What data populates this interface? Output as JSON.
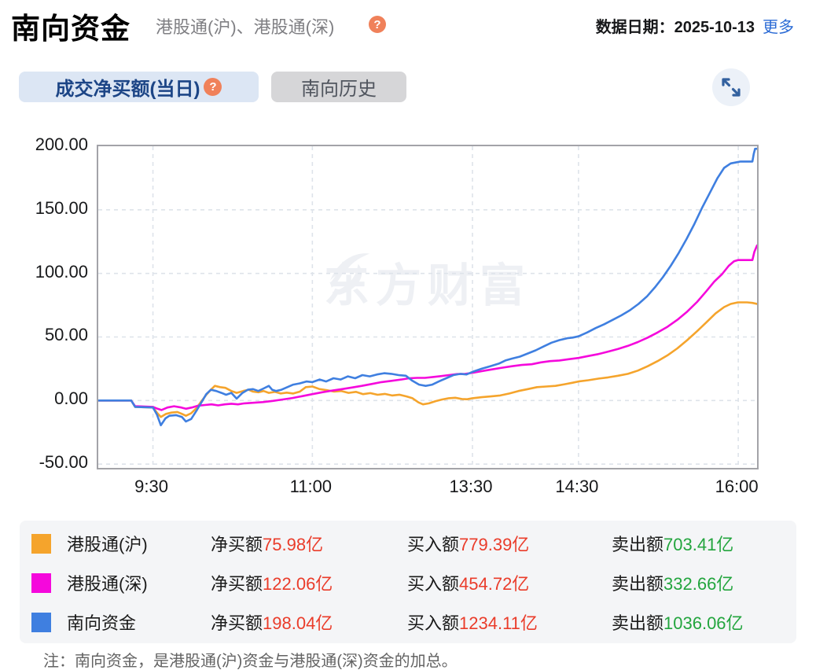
{
  "header": {
    "title": "南向资金",
    "subtitle": "港股通(沪)、港股通(深)",
    "help_glyph": "?",
    "date_text": "数据日期：2025-10-13",
    "more_label": "更多"
  },
  "tabs": [
    {
      "label": "成交净买额(当日)",
      "active": true
    },
    {
      "label": "南向历史",
      "active": false
    }
  ],
  "watermark": "东方财富",
  "chart_data": {
    "type": "line",
    "title": "成交净买额(当日)",
    "ylabel": "亿",
    "ylim": [
      -53,
      200
    ],
    "grid": true,
    "legend_position": "bottom",
    "y_ticks": [
      {
        "v": 200,
        "label": "200.00"
      },
      {
        "v": 150,
        "label": "150.00"
      },
      {
        "v": 100,
        "label": "100.00"
      },
      {
        "v": 50,
        "label": "50.00"
      },
      {
        "v": 0,
        "label": "0.00"
      },
      {
        "v": -50,
        "label": "-50.00"
      }
    ],
    "x_ticks": [
      {
        "f": 0.083,
        "label": "9:30"
      },
      {
        "f": 0.325,
        "label": "11:00"
      },
      {
        "f": 0.568,
        "label": "13:30"
      },
      {
        "f": 0.729,
        "label": "14:30"
      },
      {
        "f": 0.9715,
        "label": "16:00"
      }
    ],
    "series": [
      {
        "name": "港股通(沪)",
        "color": "#f5a42c",
        "points": [
          [
            0,
            0
          ],
          [
            0.05,
            0
          ],
          [
            0.056,
            -5
          ],
          [
            0.083,
            -5.5
          ],
          [
            0.089,
            -9.5
          ],
          [
            0.095,
            -13
          ],
          [
            0.103,
            -10.5
          ],
          [
            0.111,
            -9.5
          ],
          [
            0.12,
            -9
          ],
          [
            0.127,
            -10.5
          ],
          [
            0.133,
            -12
          ],
          [
            0.141,
            -10
          ],
          [
            0.149,
            -6
          ],
          [
            0.156,
            -1
          ],
          [
            0.164,
            4.5
          ],
          [
            0.171,
            8.5
          ],
          [
            0.177,
            11.5
          ],
          [
            0.185,
            10.5
          ],
          [
            0.193,
            10
          ],
          [
            0.202,
            7.5
          ],
          [
            0.21,
            6
          ],
          [
            0.22,
            7.5
          ],
          [
            0.228,
            8.5
          ],
          [
            0.235,
            7
          ],
          [
            0.243,
            6.5
          ],
          [
            0.251,
            7.5
          ],
          [
            0.259,
            6
          ],
          [
            0.268,
            6.8
          ],
          [
            0.277,
            5.5
          ],
          [
            0.286,
            6.2
          ],
          [
            0.296,
            5.5
          ],
          [
            0.306,
            7
          ],
          [
            0.315,
            10.5
          ],
          [
            0.325,
            11
          ],
          [
            0.336,
            9
          ],
          [
            0.347,
            8.2
          ],
          [
            0.358,
            7
          ],
          [
            0.369,
            7.5
          ],
          [
            0.38,
            6
          ],
          [
            0.391,
            6.8
          ],
          [
            0.402,
            5
          ],
          [
            0.413,
            5.8
          ],
          [
            0.424,
            4.5
          ],
          [
            0.435,
            5.2
          ],
          [
            0.446,
            4
          ],
          [
            0.457,
            4.6
          ],
          [
            0.468,
            3.2
          ],
          [
            0.477,
            1.8
          ],
          [
            0.486,
            -1.5
          ],
          [
            0.493,
            -3
          ],
          [
            0.502,
            -2.2
          ],
          [
            0.512,
            -0.5
          ],
          [
            0.522,
            0.8
          ],
          [
            0.532,
            1.8
          ],
          [
            0.542,
            2.2
          ],
          [
            0.552,
            1.2
          ],
          [
            0.56,
            1
          ],
          [
            0.568,
            1.8
          ],
          [
            0.582,
            2.6
          ],
          [
            0.596,
            3.2
          ],
          [
            0.61,
            4
          ],
          [
            0.624,
            5.5
          ],
          [
            0.638,
            7.5
          ],
          [
            0.652,
            9
          ],
          [
            0.666,
            10.5
          ],
          [
            0.68,
            11
          ],
          [
            0.694,
            11.5
          ],
          [
            0.708,
            12.8
          ],
          [
            0.72,
            14
          ],
          [
            0.729,
            15
          ],
          [
            0.744,
            16
          ],
          [
            0.759,
            17.2
          ],
          [
            0.774,
            18.2
          ],
          [
            0.789,
            19.5
          ],
          [
            0.804,
            21
          ],
          [
            0.819,
            23.5
          ],
          [
            0.834,
            27
          ],
          [
            0.849,
            31
          ],
          [
            0.864,
            35.5
          ],
          [
            0.879,
            41
          ],
          [
            0.894,
            47.5
          ],
          [
            0.909,
            54.5
          ],
          [
            0.923,
            61.5
          ],
          [
            0.937,
            68.5
          ],
          [
            0.95,
            73.5
          ],
          [
            0.96,
            76
          ],
          [
            0.971,
            77.2
          ],
          [
            0.985,
            77.2
          ],
          [
            0.993,
            76.8
          ],
          [
            1,
            76
          ]
        ]
      },
      {
        "name": "港股通(深)",
        "color": "#f508dc",
        "points": [
          [
            0,
            0
          ],
          [
            0.05,
            0
          ],
          [
            0.056,
            -4.5
          ],
          [
            0.083,
            -5
          ],
          [
            0.09,
            -6.5
          ],
          [
            0.096,
            -7.5
          ],
          [
            0.105,
            -5.5
          ],
          [
            0.115,
            -4.5
          ],
          [
            0.126,
            -5.5
          ],
          [
            0.133,
            -6.5
          ],
          [
            0.142,
            -5.5
          ],
          [
            0.152,
            -4
          ],
          [
            0.162,
            -3.5
          ],
          [
            0.172,
            -3
          ],
          [
            0.182,
            -3.8
          ],
          [
            0.192,
            -3
          ],
          [
            0.202,
            -2.5
          ],
          [
            0.212,
            -3
          ],
          [
            0.222,
            -2.2
          ],
          [
            0.235,
            -1.8
          ],
          [
            0.25,
            -1.2
          ],
          [
            0.265,
            -0.3
          ],
          [
            0.28,
            0.8
          ],
          [
            0.295,
            2
          ],
          [
            0.31,
            3.5
          ],
          [
            0.325,
            5
          ],
          [
            0.34,
            6.5
          ],
          [
            0.355,
            7.8
          ],
          [
            0.37,
            9
          ],
          [
            0.385,
            10.2
          ],
          [
            0.4,
            11.5
          ],
          [
            0.415,
            13
          ],
          [
            0.43,
            14.5
          ],
          [
            0.445,
            15.5
          ],
          [
            0.46,
            16.5
          ],
          [
            0.472,
            17.5
          ],
          [
            0.484,
            17.8
          ],
          [
            0.496,
            17.8
          ],
          [
            0.508,
            18.5
          ],
          [
            0.52,
            19.2
          ],
          [
            0.532,
            20
          ],
          [
            0.545,
            20.8
          ],
          [
            0.557,
            21
          ],
          [
            0.568,
            21.8
          ],
          [
            0.583,
            23.2
          ],
          [
            0.598,
            24.5
          ],
          [
            0.613,
            25.8
          ],
          [
            0.628,
            27
          ],
          [
            0.643,
            28
          ],
          [
            0.658,
            28.5
          ],
          [
            0.672,
            30
          ],
          [
            0.686,
            31
          ],
          [
            0.7,
            31.5
          ],
          [
            0.714,
            32.5
          ],
          [
            0.729,
            33.5
          ],
          [
            0.744,
            35
          ],
          [
            0.759,
            36.5
          ],
          [
            0.774,
            38.5
          ],
          [
            0.789,
            40.5
          ],
          [
            0.804,
            43
          ],
          [
            0.819,
            46
          ],
          [
            0.834,
            49.5
          ],
          [
            0.849,
            53.5
          ],
          [
            0.864,
            58
          ],
          [
            0.879,
            63.5
          ],
          [
            0.894,
            70
          ],
          [
            0.909,
            77.5
          ],
          [
            0.923,
            86
          ],
          [
            0.935,
            93.5
          ],
          [
            0.947,
            99.5
          ],
          [
            0.957,
            106
          ],
          [
            0.965,
            109.5
          ],
          [
            0.971,
            110.5
          ],
          [
            0.993,
            110.5
          ],
          [
            0.996,
            117
          ],
          [
            1,
            122
          ]
        ]
      },
      {
        "name": "南向资金",
        "color": "#3f7fe0",
        "points": [
          [
            0,
            0
          ],
          [
            0.05,
            0
          ],
          [
            0.056,
            -5
          ],
          [
            0.083,
            -5.5
          ],
          [
            0.089,
            -11
          ],
          [
            0.095,
            -19.5
          ],
          [
            0.102,
            -14
          ],
          [
            0.108,
            -12
          ],
          [
            0.118,
            -11.5
          ],
          [
            0.127,
            -13
          ],
          [
            0.133,
            -16.5
          ],
          [
            0.141,
            -14.5
          ],
          [
            0.149,
            -8
          ],
          [
            0.156,
            -2
          ],
          [
            0.164,
            5
          ],
          [
            0.171,
            8.5
          ],
          [
            0.179,
            7.5
          ],
          [
            0.187,
            6
          ],
          [
            0.194,
            4.5
          ],
          [
            0.202,
            6
          ],
          [
            0.21,
            1.5
          ],
          [
            0.219,
            6
          ],
          [
            0.227,
            8.5
          ],
          [
            0.235,
            9
          ],
          [
            0.243,
            7.5
          ],
          [
            0.251,
            9.5
          ],
          [
            0.259,
            11.5
          ],
          [
            0.264,
            8.5
          ],
          [
            0.27,
            7.5
          ],
          [
            0.278,
            8.5
          ],
          [
            0.287,
            10.5
          ],
          [
            0.296,
            12.5
          ],
          [
            0.306,
            13.5
          ],
          [
            0.316,
            15
          ],
          [
            0.325,
            14.5
          ],
          [
            0.336,
            16.5
          ],
          [
            0.346,
            15
          ],
          [
            0.357,
            17.5
          ],
          [
            0.368,
            16.5
          ],
          [
            0.379,
            19
          ],
          [
            0.39,
            17.5
          ],
          [
            0.401,
            20
          ],
          [
            0.412,
            19
          ],
          [
            0.423,
            20.5
          ],
          [
            0.434,
            21.5
          ],
          [
            0.445,
            21
          ],
          [
            0.456,
            20
          ],
          [
            0.467,
            19.5
          ],
          [
            0.477,
            15.5
          ],
          [
            0.487,
            12.5
          ],
          [
            0.497,
            11.5
          ],
          [
            0.507,
            12.5
          ],
          [
            0.517,
            15
          ],
          [
            0.528,
            17.5
          ],
          [
            0.539,
            20
          ],
          [
            0.55,
            21
          ],
          [
            0.559,
            20.5
          ],
          [
            0.568,
            22.5
          ],
          [
            0.582,
            25
          ],
          [
            0.595,
            27
          ],
          [
            0.608,
            29
          ],
          [
            0.618,
            31.5
          ],
          [
            0.628,
            33
          ],
          [
            0.64,
            34.5
          ],
          [
            0.652,
            37
          ],
          [
            0.664,
            39.5
          ],
          [
            0.676,
            42.5
          ],
          [
            0.688,
            45.5
          ],
          [
            0.7,
            47.5
          ],
          [
            0.712,
            49
          ],
          [
            0.72,
            49.5
          ],
          [
            0.729,
            50.5
          ],
          [
            0.742,
            53.5
          ],
          [
            0.755,
            57
          ],
          [
            0.768,
            60
          ],
          [
            0.781,
            63.5
          ],
          [
            0.794,
            67
          ],
          [
            0.807,
            71
          ],
          [
            0.82,
            76
          ],
          [
            0.833,
            82
          ],
          [
            0.845,
            89
          ],
          [
            0.857,
            97
          ],
          [
            0.869,
            106
          ],
          [
            0.881,
            116
          ],
          [
            0.893,
            127
          ],
          [
            0.905,
            139
          ],
          [
            0.917,
            152
          ],
          [
            0.929,
            164
          ],
          [
            0.94,
            175
          ],
          [
            0.95,
            183
          ],
          [
            0.96,
            186.5
          ],
          [
            0.97,
            187.5
          ],
          [
            0.975,
            188
          ],
          [
            0.993,
            188
          ],
          [
            0.995,
            194
          ],
          [
            0.997,
            198
          ],
          [
            1,
            198
          ]
        ]
      }
    ]
  },
  "legend": {
    "rows": [
      {
        "name": "港股通(沪)",
        "color": "#f5a42c",
        "net_label": "净买额",
        "net_value": "75.98亿",
        "buy_label": "买入额",
        "buy_value": "779.39亿",
        "sell_label": "卖出额",
        "sell_value": "703.41亿"
      },
      {
        "name": "港股通(深)",
        "color": "#f508dc",
        "net_label": "净买额",
        "net_value": "122.06亿",
        "buy_label": "买入额",
        "buy_value": "454.72亿",
        "sell_label": "卖出额",
        "sell_value": "332.66亿"
      },
      {
        "name": "南向资金",
        "color": "#3f7fe0",
        "net_label": "净买额",
        "net_value": "198.04亿",
        "buy_label": "买入额",
        "buy_value": "1234.11亿",
        "sell_label": "卖出额",
        "sell_value": "1036.06亿"
      }
    ]
  },
  "note": "注：南向资金，是港股通(沪)资金与港股通(深)资金的加总。",
  "colors": {
    "positive_red": "#ea3c2a",
    "sell_green": "#23a53e",
    "link_blue": "#2b6bd5",
    "active_tab_bg": "#dce6f4",
    "active_tab_text": "#1c4586",
    "grid": "#dee3ea",
    "help_icon_bg": "#f0815a"
  }
}
